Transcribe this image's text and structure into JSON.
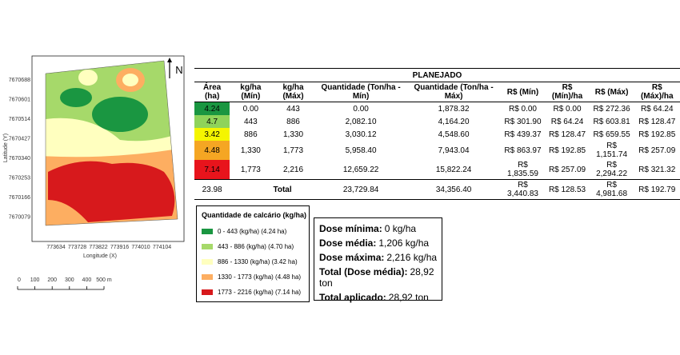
{
  "map": {
    "north": "N",
    "y_axis_title": "Latitude (Y)",
    "x_axis_title": "Longitude (X)",
    "yticks": [
      7670688,
      7670601,
      7670514,
      7670427,
      7670340,
      7670253,
      7670166,
      7670079
    ],
    "xticks": [
      773634,
      773728,
      773822,
      773916,
      774010,
      774104
    ],
    "scale_labels": [
      "0",
      "100",
      "200",
      "300",
      "400",
      "500 m"
    ]
  },
  "table": {
    "title": "PLANEJADO",
    "headers": [
      "Área (ha)",
      "kg/ha (Mín)",
      "kg/ha (Máx)",
      "Quantidade (Ton/ha - Mín)",
      "Quantidade (Ton/ha - Máx)",
      "R$ (Mín)",
      "R$ (Mín)/ha",
      "R$ (Máx)",
      "R$ (Máx)/ha"
    ],
    "rows": [
      {
        "color": "#1a9641",
        "cells": [
          "4.24",
          "0.00",
          "443",
          "0.00",
          "1,878.32",
          "R$ 0.00",
          "R$ 0.00",
          "R$ 272.36",
          "R$ 64.24"
        ]
      },
      {
        "color": "#8fd35a",
        "cells": [
          "4.7",
          "443",
          "886",
          "2,082.10",
          "4,164.20",
          "R$ 301.90",
          "R$ 64.24",
          "R$ 603.81",
          "R$ 128.47"
        ]
      },
      {
        "color": "#f5f500",
        "cells": [
          "3.42",
          "886",
          "1,330",
          "3,030.12",
          "4,548.60",
          "R$ 439.37",
          "R$ 128.47",
          "R$ 659.55",
          "R$ 192.85"
        ]
      },
      {
        "color": "#f5a623",
        "cells": [
          "4.48",
          "1,330",
          "1,773",
          "5,958.40",
          "7,943.04",
          "R$ 863.97",
          "R$ 192.85",
          "R$ 1,151.74",
          "R$ 257.09"
        ]
      },
      {
        "color": "#e8141c",
        "cells": [
          "7.14",
          "1,773",
          "2,216",
          "12,659.22",
          "15,822.24",
          "R$ 1,835.59",
          "R$ 257.09",
          "R$ 2,294.22",
          "R$ 321.32"
        ]
      }
    ],
    "total": {
      "area": "23.98",
      "label": "Total",
      "cells": [
        "23,729.84",
        "34,356.40",
        "R$ 3,440.83",
        "R$ 128.53",
        "R$ 4,981.68",
        "R$ 192.79"
      ]
    }
  },
  "legend": {
    "title": "Quantidade de calcário (kg/ha)",
    "items": [
      {
        "color": "#1a9641",
        "label": "0 - 443 (kg/ha) (4.24 ha)"
      },
      {
        "color": "#a6d96a",
        "label": "443 - 886 (kg/ha) (4.70 ha)"
      },
      {
        "color": "#ffffbf",
        "label": "886 - 1330 (kg/ha) (3.42 ha)"
      },
      {
        "color": "#fdae61",
        "label": "1330 - 1773 (kg/ha) (4.48 ha)"
      },
      {
        "color": "#d7191c",
        "label": "1773 - 2216 (kg/ha) (7.14 ha)"
      }
    ]
  },
  "summary": [
    {
      "label": "Dose mínima:",
      "value": "0 kg/ha"
    },
    {
      "label": "Dose média:",
      "value": "1,206 kg/ha"
    },
    {
      "label": "Dose máxima:",
      "value": "2,216 kg/ha"
    },
    {
      "label": "Total (Dose média):",
      "value": "28,92 ton"
    },
    {
      "label": "Total aplicado:",
      "value": "28,92 ton"
    }
  ]
}
